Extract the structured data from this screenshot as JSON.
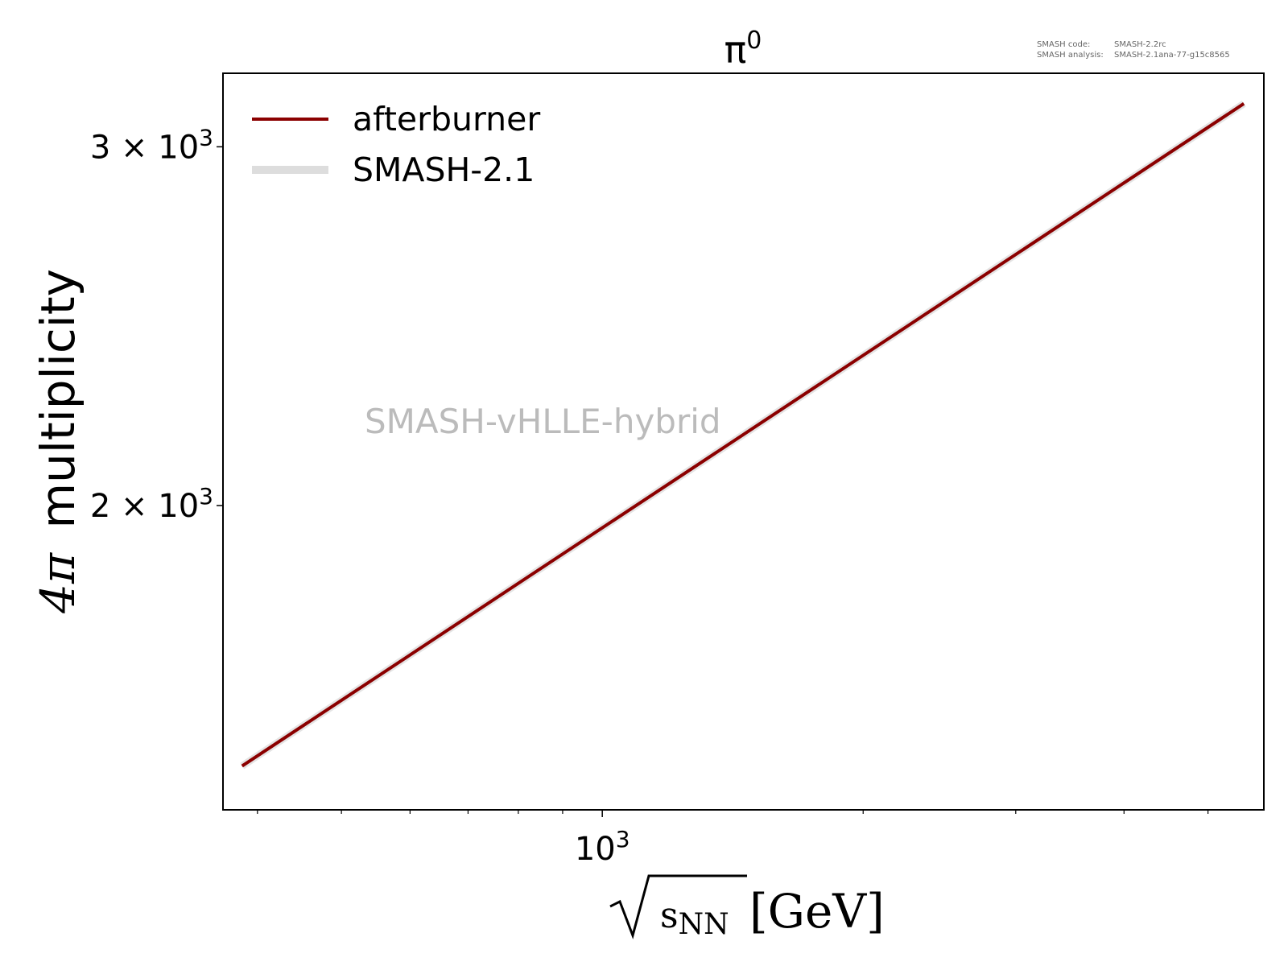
{
  "chart_data": {
    "type": "line",
    "title": "π⁰",
    "title_base": "π",
    "title_sup": "0",
    "xlabel": "√sNN [GeV]",
    "xlabel_parts": {
      "radicand": "s",
      "sub": "NN",
      "unit": "[GeV]"
    },
    "ylabel": "4π multiplicity",
    "ylabel_parts": {
      "prefix": "4π",
      "text": "multiplicity"
    },
    "x_scale": "log",
    "y_scale": "log",
    "xlim": [
      365,
      5800
    ],
    "ylim": [
      1418,
      3260
    ],
    "x_ticks": [
      {
        "value": 1000,
        "base": "10",
        "exp": "3"
      }
    ],
    "y_ticks": [
      {
        "value": 2000,
        "coef": "2",
        "times": "×",
        "base": "10",
        "exp": "3"
      },
      {
        "value": 3000,
        "coef": "3",
        "times": "×",
        "base": "10",
        "exp": "3"
      }
    ],
    "series": [
      {
        "name": "SMASH-2.1",
        "color": "#dddddd",
        "x": [
          384,
          5500
        ],
        "y": [
          1490,
          3150
        ],
        "style": "thick-light"
      },
      {
        "name": "afterburner",
        "color": "#8b0000",
        "x": [
          384,
          5500
        ],
        "y": [
          1490,
          3150
        ],
        "style": "solid"
      }
    ],
    "legend": {
      "position": "top-left",
      "entries": [
        {
          "label": "afterburner",
          "color": "#8b0000"
        },
        {
          "label": "SMASH-2.1",
          "color": "#dddddd"
        }
      ]
    },
    "grid": false,
    "watermark": "SMASH-vHLLE-hybrid",
    "info": {
      "code_label": "SMASH code:",
      "code_value": "SMASH-2.2rc",
      "analysis_label": "SMASH analysis:",
      "analysis_value": "SMASH-2.1ana-77-g15c8565"
    }
  }
}
